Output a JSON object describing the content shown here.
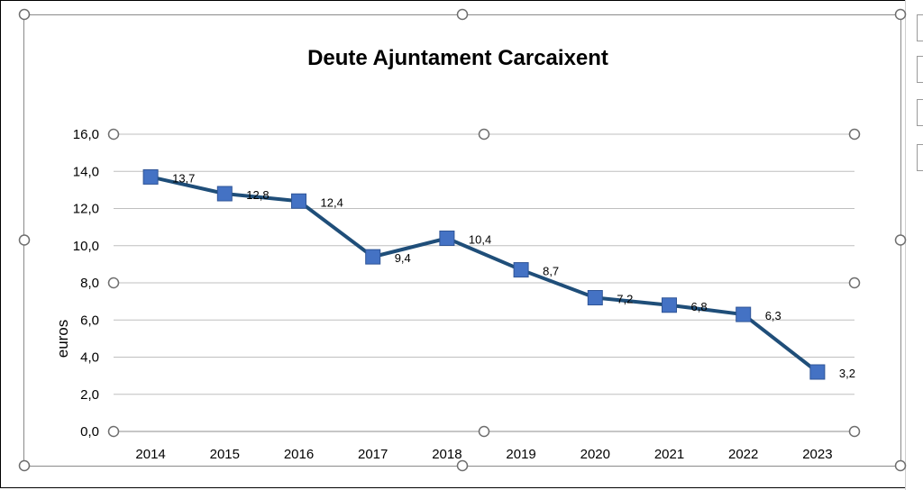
{
  "chart_data": {
    "type": "line",
    "title": "Deute Ajuntament Carcaixent",
    "xlabel": "",
    "ylabel": "euros",
    "categories": [
      "2014",
      "2015",
      "2016",
      "2017",
      "2018",
      "2019",
      "2020",
      "2021",
      "2022",
      "2023"
    ],
    "series": [
      {
        "values": [
          13.7,
          12.8,
          12.4,
          9.4,
          10.4,
          8.7,
          7.2,
          6.8,
          6.3,
          3.2
        ]
      }
    ],
    "data_labels": [
      "13,7",
      "12,8",
      "12,4",
      "9,4",
      "10,4",
      "8,7",
      "7,2",
      "6,8",
      "6,3",
      "3,2"
    ],
    "y_ticks": [
      "0,0",
      "2,0",
      "4,0",
      "6,0",
      "8,0",
      "10,0",
      "12,0",
      "14,0",
      "16,0"
    ],
    "ylim": [
      0,
      16
    ],
    "grid": true,
    "legend": "none",
    "colors": {
      "line": "#1f4e79",
      "marker": "#4472c4",
      "grid": "#bfbfbf"
    }
  }
}
